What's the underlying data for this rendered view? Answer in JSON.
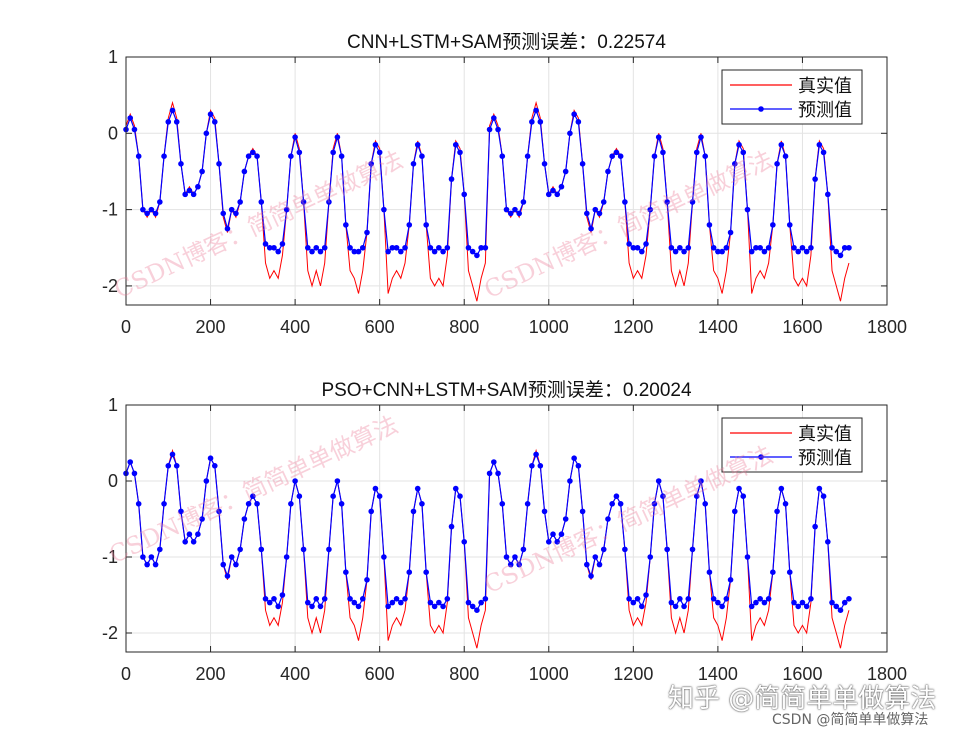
{
  "chart_data": [
    {
      "type": "line",
      "title": "CNN+LSTM+SAM预测误差：0.22574",
      "xlabel": "",
      "ylabel": "",
      "xlim": [
        0,
        1800
      ],
      "ylim": [
        -2.25,
        1
      ],
      "xticks": [
        0,
        200,
        400,
        600,
        800,
        1000,
        1200,
        1400,
        1600,
        1800
      ],
      "yticks": [
        -2,
        -1,
        0,
        1
      ],
      "grid": true,
      "legend_position": "top-right",
      "x_start": 0,
      "x_step": 10,
      "series": [
        {
          "name": "真实值",
          "color": "#ff0000",
          "marker": "none",
          "values": [
            0.1,
            0.25,
            0.1,
            -0.3,
            -1.0,
            -1.1,
            -1.0,
            -1.1,
            -0.9,
            -0.3,
            0.2,
            0.4,
            0.2,
            -0.4,
            -0.8,
            -0.7,
            -0.8,
            -0.7,
            -0.5,
            0.0,
            0.3,
            0.2,
            -0.4,
            -1.1,
            -1.3,
            -1.0,
            -1.1,
            -0.9,
            -0.5,
            -0.3,
            -0.2,
            -0.3,
            -0.9,
            -1.7,
            -1.9,
            -1.8,
            -1.9,
            -1.6,
            -1.0,
            -0.3,
            0.0,
            -0.2,
            -0.9,
            -1.8,
            -2.0,
            -1.8,
            -2.0,
            -1.7,
            -0.9,
            -0.2,
            0.0,
            -0.3,
            -1.2,
            -1.8,
            -1.9,
            -2.1,
            -1.8,
            -1.3,
            -0.4,
            -0.1,
            -0.2,
            -1.0,
            -2.1,
            -1.9,
            -1.8,
            -1.9,
            -1.7,
            -1.2,
            -0.4,
            -0.1,
            -0.3,
            -1.2,
            -1.9,
            -2.0,
            -1.9,
            -2.0,
            -1.6,
            -0.6,
            -0.1,
            -0.2,
            -0.8,
            -1.8,
            -2.0,
            -2.2,
            -1.9,
            -1.7,
            0.1,
            0.25,
            0.1,
            -0.3,
            -1.0,
            -1.1,
            -1.0,
            -1.1,
            -0.9,
            -0.3,
            0.2,
            0.4,
            0.2,
            -0.4,
            -0.8,
            -0.7,
            -0.8,
            -0.7,
            -0.5,
            0.0,
            0.3,
            0.2,
            -0.4,
            -1.1,
            -1.3,
            -1.0,
            -1.1,
            -0.9,
            -0.5,
            -0.3,
            -0.2,
            -0.3,
            -0.9,
            -1.7,
            -1.9,
            -1.8,
            -1.9,
            -1.6,
            -1.0,
            -0.3,
            0.0,
            -0.2,
            -0.9,
            -1.8,
            -2.0,
            -1.8,
            -2.0,
            -1.7,
            -0.9,
            -0.2,
            0.0,
            -0.3,
            -1.2,
            -1.8,
            -1.9,
            -2.1,
            -1.8,
            -1.3,
            -0.4,
            -0.1,
            -0.2,
            -1.0,
            -2.1,
            -1.9,
            -1.8,
            -1.9,
            -1.7,
            -1.2,
            -0.4,
            -0.1,
            -0.3,
            -1.2,
            -1.9,
            -2.0,
            -1.9,
            -2.0,
            -1.6,
            -0.6,
            -0.1,
            -0.2,
            -0.8,
            -1.8,
            -2.0,
            -2.2,
            -1.9,
            -1.7
          ]
        },
        {
          "name": "预测值",
          "color": "#0000ff",
          "marker": "dot",
          "values": [
            0.05,
            0.2,
            0.05,
            -0.3,
            -1.0,
            -1.05,
            -1.0,
            -1.05,
            -0.9,
            -0.3,
            0.15,
            0.3,
            0.15,
            -0.4,
            -0.8,
            -0.75,
            -0.8,
            -0.7,
            -0.5,
            0.0,
            0.25,
            0.15,
            -0.4,
            -1.05,
            -1.25,
            -1.0,
            -1.05,
            -0.9,
            -0.5,
            -0.3,
            -0.25,
            -0.3,
            -0.9,
            -1.45,
            -1.5,
            -1.5,
            -1.55,
            -1.45,
            -1.0,
            -0.3,
            -0.05,
            -0.25,
            -0.9,
            -1.5,
            -1.55,
            -1.5,
            -1.55,
            -1.5,
            -0.9,
            -0.25,
            -0.05,
            -0.3,
            -1.2,
            -1.5,
            -1.55,
            -1.55,
            -1.5,
            -1.3,
            -0.4,
            -0.15,
            -0.25,
            -1.0,
            -1.55,
            -1.5,
            -1.5,
            -1.55,
            -1.5,
            -1.2,
            -0.4,
            -0.15,
            -0.3,
            -1.2,
            -1.5,
            -1.55,
            -1.5,
            -1.55,
            -1.5,
            -0.6,
            -0.15,
            -0.25,
            -0.8,
            -1.5,
            -1.55,
            -1.6,
            -1.5,
            -1.5,
            0.05,
            0.2,
            0.05,
            -0.3,
            -1.0,
            -1.05,
            -1.0,
            -1.05,
            -0.9,
            -0.3,
            0.15,
            0.3,
            0.15,
            -0.4,
            -0.8,
            -0.75,
            -0.8,
            -0.7,
            -0.5,
            0.0,
            0.25,
            0.15,
            -0.4,
            -1.05,
            -1.25,
            -1.0,
            -1.05,
            -0.9,
            -0.5,
            -0.3,
            -0.25,
            -0.3,
            -0.9,
            -1.45,
            -1.5,
            -1.5,
            -1.55,
            -1.45,
            -1.0,
            -0.3,
            -0.05,
            -0.25,
            -0.9,
            -1.5,
            -1.55,
            -1.5,
            -1.55,
            -1.5,
            -0.9,
            -0.25,
            -0.05,
            -0.3,
            -1.2,
            -1.5,
            -1.55,
            -1.55,
            -1.5,
            -1.3,
            -0.4,
            -0.15,
            -0.25,
            -1.0,
            -1.55,
            -1.5,
            -1.5,
            -1.55,
            -1.5,
            -1.2,
            -0.4,
            -0.15,
            -0.3,
            -1.2,
            -1.5,
            -1.55,
            -1.5,
            -1.55,
            -1.5,
            -0.6,
            -0.15,
            -0.25,
            -0.8,
            -1.5,
            -1.55,
            -1.6,
            -1.5,
            -1.5
          ]
        }
      ]
    },
    {
      "type": "line",
      "title": "PSO+CNN+LSTM+SAM预测误差：0.20024",
      "xlabel": "",
      "ylabel": "",
      "xlim": [
        0,
        1800
      ],
      "ylim": [
        -2.25,
        1
      ],
      "xticks": [
        0,
        200,
        400,
        600,
        800,
        1000,
        1200,
        1400,
        1600,
        1800
      ],
      "yticks": [
        -2,
        -1,
        0,
        1
      ],
      "grid": true,
      "legend_position": "top-right",
      "x_start": 0,
      "x_step": 10,
      "series": [
        {
          "name": "真实值",
          "color": "#ff0000",
          "marker": "none",
          "values": [
            0.1,
            0.25,
            0.1,
            -0.3,
            -1.0,
            -1.1,
            -1.0,
            -1.1,
            -0.9,
            -0.3,
            0.2,
            0.4,
            0.2,
            -0.4,
            -0.8,
            -0.7,
            -0.8,
            -0.7,
            -0.5,
            0.0,
            0.3,
            0.2,
            -0.4,
            -1.1,
            -1.3,
            -1.0,
            -1.1,
            -0.9,
            -0.5,
            -0.3,
            -0.2,
            -0.3,
            -0.9,
            -1.7,
            -1.9,
            -1.8,
            -1.9,
            -1.6,
            -1.0,
            -0.3,
            0.0,
            -0.2,
            -0.9,
            -1.8,
            -2.0,
            -1.8,
            -2.0,
            -1.7,
            -0.9,
            -0.2,
            0.0,
            -0.3,
            -1.2,
            -1.8,
            -1.9,
            -2.1,
            -1.8,
            -1.3,
            -0.4,
            -0.1,
            -0.2,
            -1.0,
            -2.1,
            -1.9,
            -1.8,
            -1.9,
            -1.7,
            -1.2,
            -0.4,
            -0.1,
            -0.3,
            -1.2,
            -1.9,
            -2.0,
            -1.9,
            -2.0,
            -1.6,
            -0.6,
            -0.1,
            -0.2,
            -0.8,
            -1.8,
            -2.0,
            -2.2,
            -1.9,
            -1.7,
            0.1,
            0.25,
            0.1,
            -0.3,
            -1.0,
            -1.1,
            -1.0,
            -1.1,
            -0.9,
            -0.3,
            0.2,
            0.4,
            0.2,
            -0.4,
            -0.8,
            -0.7,
            -0.8,
            -0.7,
            -0.5,
            0.0,
            0.3,
            0.2,
            -0.4,
            -1.1,
            -1.3,
            -1.0,
            -1.1,
            -0.9,
            -0.5,
            -0.3,
            -0.2,
            -0.3,
            -0.9,
            -1.7,
            -1.9,
            -1.8,
            -1.9,
            -1.6,
            -1.0,
            -0.3,
            0.0,
            -0.2,
            -0.9,
            -1.8,
            -2.0,
            -1.8,
            -2.0,
            -1.7,
            -0.9,
            -0.2,
            0.0,
            -0.3,
            -1.2,
            -1.8,
            -1.9,
            -2.1,
            -1.8,
            -1.3,
            -0.4,
            -0.1,
            -0.2,
            -1.0,
            -2.1,
            -1.9,
            -1.8,
            -1.9,
            -1.7,
            -1.2,
            -0.4,
            -0.1,
            -0.3,
            -1.2,
            -1.9,
            -2.0,
            -1.9,
            -2.0,
            -1.6,
            -0.6,
            -0.1,
            -0.2,
            -0.8,
            -1.8,
            -2.0,
            -2.2,
            -1.9,
            -1.7
          ]
        },
        {
          "name": "预测值",
          "color": "#0000ff",
          "marker": "dot",
          "values": [
            0.1,
            0.25,
            0.1,
            -0.3,
            -1.0,
            -1.1,
            -1.0,
            -1.1,
            -0.9,
            -0.3,
            0.2,
            0.35,
            0.2,
            -0.4,
            -0.8,
            -0.7,
            -0.8,
            -0.7,
            -0.5,
            0.0,
            0.3,
            0.2,
            -0.4,
            -1.1,
            -1.25,
            -1.0,
            -1.1,
            -0.9,
            -0.5,
            -0.3,
            -0.2,
            -0.3,
            -0.9,
            -1.55,
            -1.6,
            -1.55,
            -1.65,
            -1.5,
            -1.0,
            -0.3,
            0.0,
            -0.2,
            -0.9,
            -1.6,
            -1.65,
            -1.55,
            -1.65,
            -1.55,
            -0.9,
            -0.2,
            0.0,
            -0.3,
            -1.2,
            -1.55,
            -1.6,
            -1.65,
            -1.55,
            -1.3,
            -0.4,
            -0.1,
            -0.2,
            -1.0,
            -1.65,
            -1.6,
            -1.55,
            -1.6,
            -1.55,
            -1.2,
            -0.4,
            -0.1,
            -0.3,
            -1.2,
            -1.6,
            -1.65,
            -1.6,
            -1.65,
            -1.55,
            -0.6,
            -0.1,
            -0.2,
            -0.8,
            -1.6,
            -1.65,
            -1.7,
            -1.6,
            -1.55,
            0.1,
            0.25,
            0.1,
            -0.3,
            -1.0,
            -1.1,
            -1.0,
            -1.1,
            -0.9,
            -0.3,
            0.2,
            0.35,
            0.2,
            -0.4,
            -0.8,
            -0.7,
            -0.8,
            -0.7,
            -0.5,
            0.0,
            0.3,
            0.2,
            -0.4,
            -1.1,
            -1.25,
            -1.0,
            -1.1,
            -0.9,
            -0.5,
            -0.3,
            -0.2,
            -0.3,
            -0.9,
            -1.55,
            -1.6,
            -1.55,
            -1.65,
            -1.5,
            -1.0,
            -0.3,
            0.0,
            -0.2,
            -0.9,
            -1.6,
            -1.65,
            -1.55,
            -1.65,
            -1.55,
            -0.9,
            -0.2,
            0.0,
            -0.3,
            -1.2,
            -1.55,
            -1.6,
            -1.65,
            -1.55,
            -1.3,
            -0.4,
            -0.1,
            -0.2,
            -1.0,
            -1.65,
            -1.6,
            -1.55,
            -1.6,
            -1.55,
            -1.2,
            -0.4,
            -0.1,
            -0.3,
            -1.2,
            -1.6,
            -1.65,
            -1.6,
            -1.65,
            -1.55,
            -0.6,
            -0.1,
            -0.2,
            -0.8,
            -1.6,
            -1.65,
            -1.7,
            -1.6,
            -1.55
          ]
        }
      ]
    }
  ],
  "watermark": {
    "text": "CSDN博客：简简单单做算法",
    "footer_zhihu": "知乎 @简简单单做算法",
    "footer_csdn": "CSDN @简简单单做算法"
  }
}
